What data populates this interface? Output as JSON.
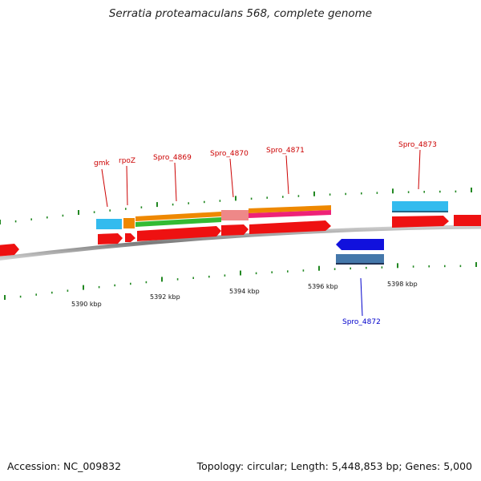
{
  "title": "Serratia proteamaculans 568, complete genome",
  "footer": {
    "accession": "Accession: NC_009832",
    "topology": "Topology: circular; Length: 5,448,853 bp; Genes: 5,000"
  },
  "scale_labels": [
    "5390 kbp",
    "5392 kbp",
    "5394 kbp",
    "5396 kbp",
    "5398 kbp"
  ],
  "gene_labels": [
    {
      "text": "gmk",
      "color": "#cc0000"
    },
    {
      "text": "rpoZ",
      "color": "#cc0000"
    },
    {
      "text": "Spro_4869",
      "color": "#cc0000"
    },
    {
      "text": "Spro_4870",
      "color": "#cc0000"
    },
    {
      "text": "Spro_4871",
      "color": "#cc0000"
    },
    {
      "text": "Spro_4873",
      "color": "#cc0000"
    },
    {
      "text": "Spro_4872",
      "color": "#0000cc"
    }
  ],
  "colors": {
    "cds": "#ee1111",
    "cds_minus": "#1111dd",
    "gene_plus": "#33bbee",
    "gene_minus": "#4477aa",
    "orange": "#ee8800",
    "green": "#33bb33",
    "magenta": "#ee2277",
    "pink": "#ee8888",
    "backbone": "#888888",
    "ticks": "#228822"
  }
}
